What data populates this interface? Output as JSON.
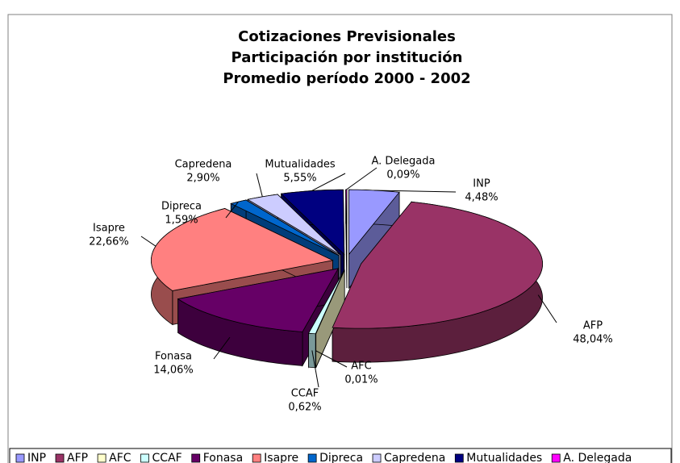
{
  "chart_data": {
    "type": "pie3d",
    "title": [
      "Cotizaciones Previsionales",
      "Participación por institución",
      "Promedio período 2000 - 2002"
    ],
    "categories": [
      "INP",
      "AFP",
      "AFC",
      "CCAF",
      "Fonasa",
      "Isapre",
      "Dipreca",
      "Capredena",
      "Mutualidades",
      "A. Delegada"
    ],
    "values": [
      4.48,
      48.04,
      0.01,
      0.62,
      14.06,
      22.66,
      1.59,
      2.9,
      5.55,
      0.09
    ],
    "value_labels": [
      "4,48%",
      "48,04%",
      "0,01%",
      "0,62%",
      "14,06%",
      "22,66%",
      "1,59%",
      "2,90%",
      "5,55%",
      "0,09%"
    ],
    "colors": [
      "#9999ff",
      "#993366",
      "#ffffcc",
      "#ccffff",
      "#660066",
      "#ff8080",
      "#0066cc",
      "#ccccff",
      "#000080",
      "#ff00ff"
    ],
    "legend": "bottom"
  }
}
